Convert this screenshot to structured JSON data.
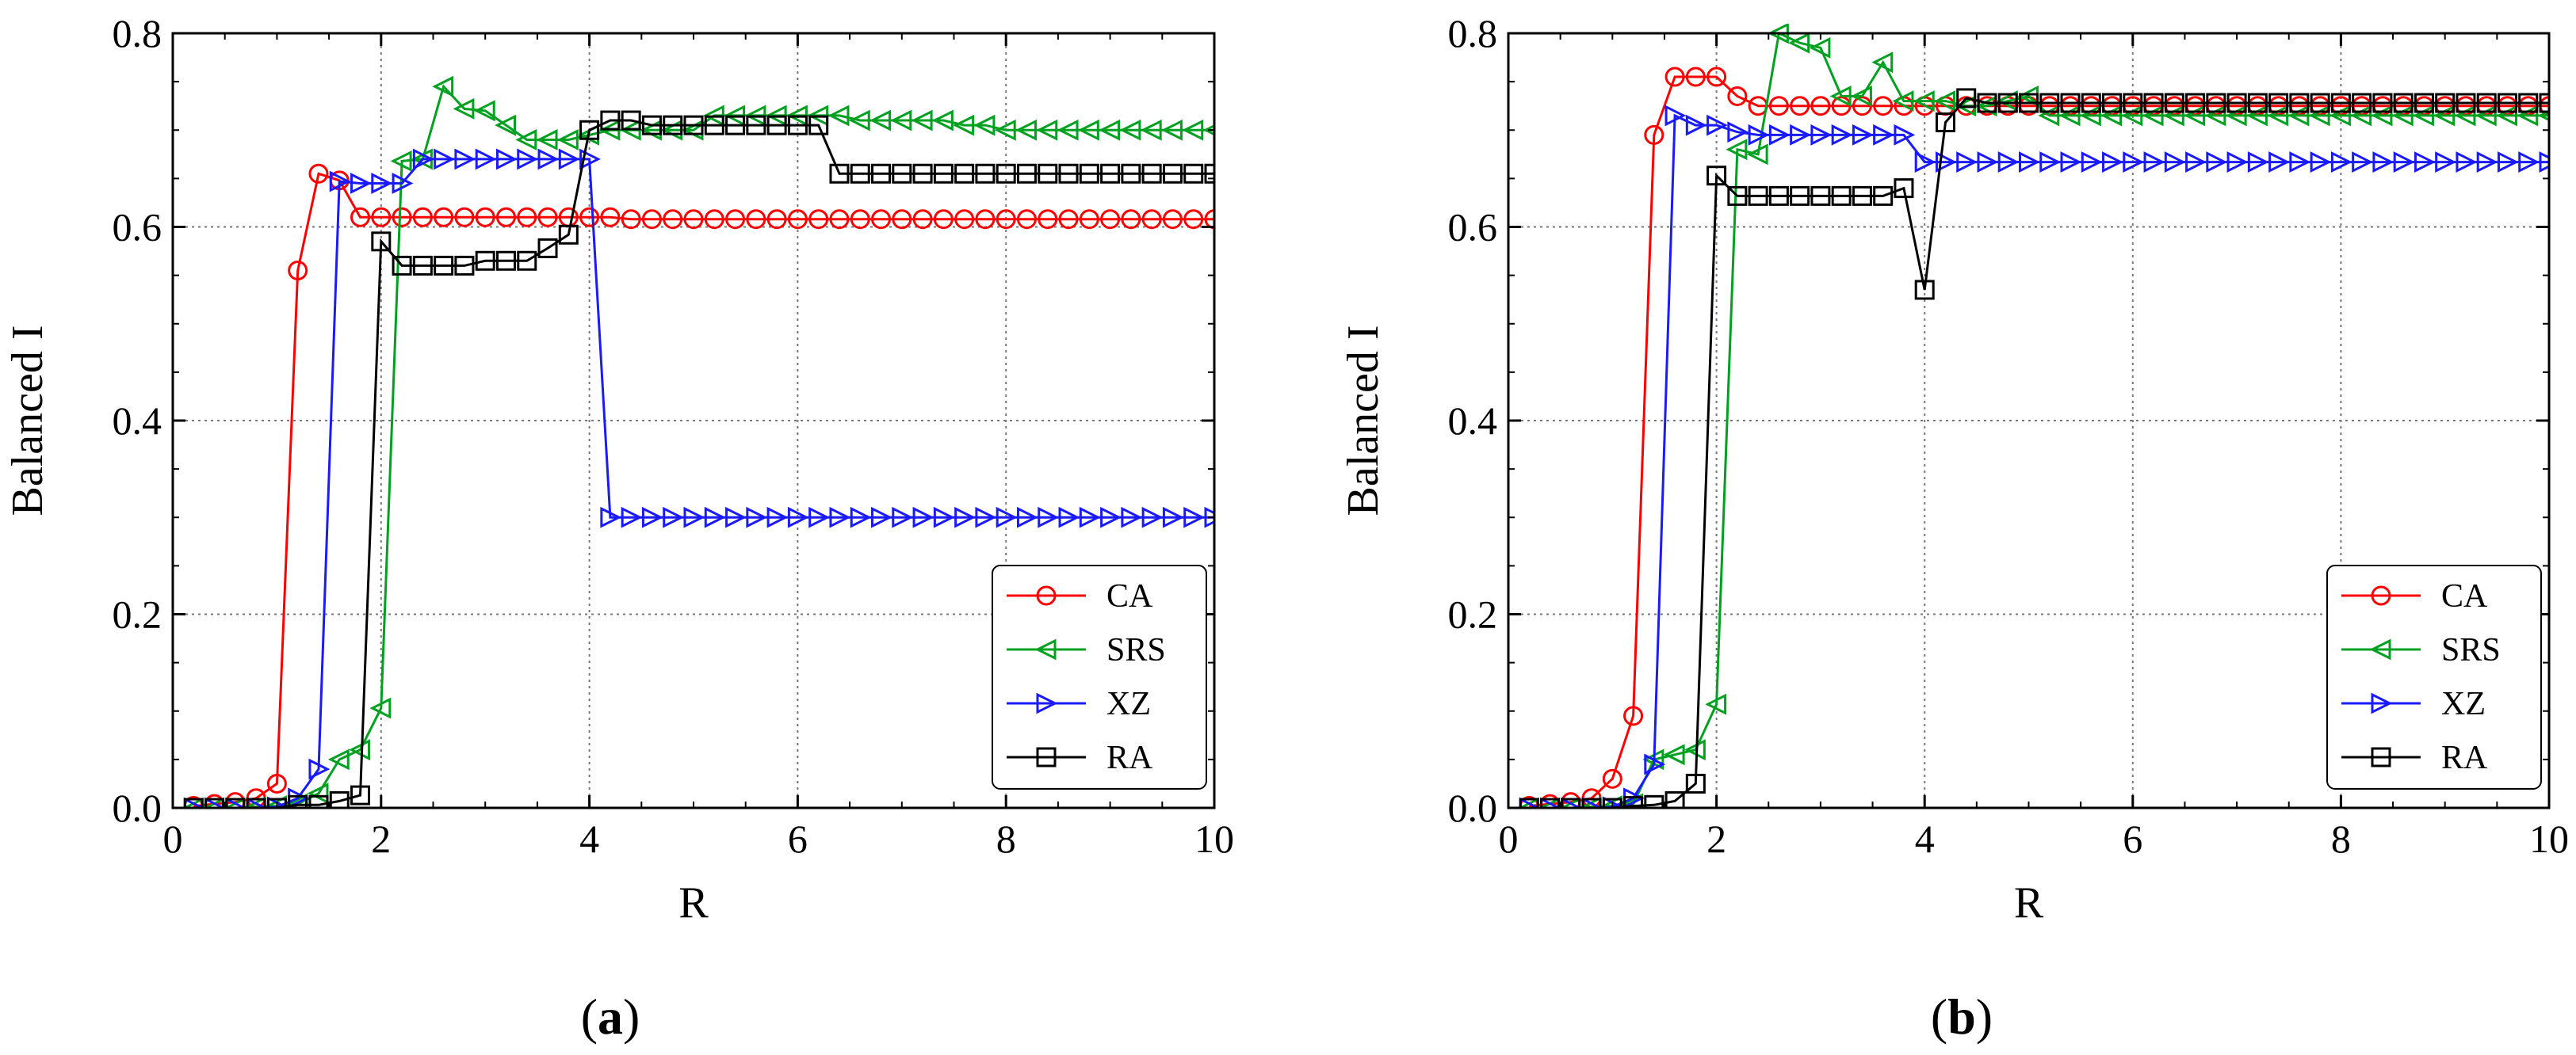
{
  "chart_data": [
    {
      "type": "line",
      "panel_label": "(a)",
      "panel_letter": "a",
      "xlabel": "R",
      "ylabel": "Balanced I",
      "xlim": [
        0,
        10
      ],
      "ylim": [
        0,
        0.8
      ],
      "xticks": [
        "0",
        "2",
        "4",
        "6",
        "8",
        "10"
      ],
      "yticks": [
        "0.0",
        "0.2",
        "0.4",
        "0.6",
        "0.8"
      ],
      "grid": true,
      "legend_position": "bottom-right",
      "x": [
        0.2,
        0.4,
        0.6,
        0.8,
        1.0,
        1.2,
        1.4,
        1.6,
        1.8,
        2.0,
        2.2,
        2.4,
        2.6,
        2.8,
        3.0,
        3.2,
        3.4,
        3.6,
        3.8,
        4.0,
        4.2,
        4.4,
        4.6,
        4.8,
        5.0,
        5.2,
        5.4,
        5.6,
        5.8,
        6.0,
        6.2,
        6.4,
        6.6,
        6.8,
        7.0,
        7.2,
        7.4,
        7.6,
        7.8,
        8.0,
        8.2,
        8.4,
        8.6,
        8.8,
        9.0,
        9.2,
        9.4,
        9.6,
        9.8,
        10.0
      ],
      "series": [
        {
          "name": "CA",
          "color": "#ff0000",
          "marker": "circle",
          "values": [
            0.002,
            0.004,
            0.006,
            0.01,
            0.025,
            0.555,
            0.655,
            0.648,
            0.61,
            0.61,
            0.61,
            0.61,
            0.61,
            0.61,
            0.61,
            0.61,
            0.61,
            0.61,
            0.61,
            0.61,
            0.61,
            0.608,
            0.608,
            0.608,
            0.608,
            0.608,
            0.608,
            0.608,
            0.608,
            0.608,
            0.608,
            0.608,
            0.608,
            0.608,
            0.608,
            0.608,
            0.608,
            0.608,
            0.608,
            0.608,
            0.608,
            0.608,
            0.608,
            0.608,
            0.608,
            0.608,
            0.608,
            0.608,
            0.608,
            0.608
          ]
        },
        {
          "name": "SRS",
          "color": "#00a020",
          "marker": "triangle-left",
          "values": [
            0.0,
            0.0,
            0.0,
            0.001,
            0.002,
            0.004,
            0.015,
            0.05,
            0.06,
            0.103,
            0.668,
            0.67,
            0.745,
            0.722,
            0.72,
            0.705,
            0.69,
            0.69,
            0.69,
            0.695,
            0.7,
            0.7,
            0.7,
            0.7,
            0.7,
            0.715,
            0.715,
            0.715,
            0.715,
            0.715,
            0.715,
            0.715,
            0.71,
            0.71,
            0.71,
            0.71,
            0.71,
            0.705,
            0.705,
            0.7,
            0.7,
            0.7,
            0.7,
            0.7,
            0.7,
            0.7,
            0.7,
            0.7,
            0.7,
            0.7
          ]
        },
        {
          "name": "XZ",
          "color": "#1a1aff",
          "marker": "triangle-right",
          "values": [
            0.0,
            0.0,
            0.0,
            0.0,
            0.001,
            0.01,
            0.04,
            0.647,
            0.645,
            0.645,
            0.645,
            0.67,
            0.67,
            0.67,
            0.67,
            0.67,
            0.67,
            0.67,
            0.67,
            0.67,
            0.3,
            0.3,
            0.3,
            0.3,
            0.3,
            0.3,
            0.3,
            0.3,
            0.3,
            0.3,
            0.3,
            0.3,
            0.3,
            0.3,
            0.3,
            0.3,
            0.3,
            0.3,
            0.3,
            0.3,
            0.3,
            0.3,
            0.3,
            0.3,
            0.3,
            0.3,
            0.3,
            0.3,
            0.3,
            0.3
          ]
        },
        {
          "name": "RA",
          "color": "#000000",
          "marker": "square",
          "values": [
            0.0,
            0.0,
            0.0,
            0.0,
            0.0,
            0.003,
            0.003,
            0.007,
            0.013,
            0.585,
            0.56,
            0.56,
            0.56,
            0.56,
            0.565,
            0.565,
            0.565,
            0.578,
            0.592,
            0.7,
            0.71,
            0.71,
            0.705,
            0.705,
            0.705,
            0.705,
            0.705,
            0.705,
            0.705,
            0.705,
            0.705,
            0.655,
            0.655,
            0.655,
            0.655,
            0.655,
            0.655,
            0.655,
            0.655,
            0.655,
            0.655,
            0.655,
            0.655,
            0.655,
            0.655,
            0.655,
            0.655,
            0.655,
            0.655,
            0.655
          ]
        }
      ]
    },
    {
      "type": "line",
      "panel_label": "(b)",
      "panel_letter": "b",
      "xlabel": "R",
      "ylabel": "Balanced I",
      "xlim": [
        0,
        10
      ],
      "ylim": [
        0,
        0.8
      ],
      "xticks": [
        "0",
        "2",
        "4",
        "6",
        "8",
        "10"
      ],
      "yticks": [
        "0.0",
        "0.2",
        "0.4",
        "0.6",
        "0.8"
      ],
      "grid": true,
      "legend_position": "bottom-right",
      "x": [
        0.2,
        0.4,
        0.6,
        0.8,
        1.0,
        1.2,
        1.4,
        1.6,
        1.8,
        2.0,
        2.2,
        2.4,
        2.6,
        2.8,
        3.0,
        3.2,
        3.4,
        3.6,
        3.8,
        4.0,
        4.2,
        4.4,
        4.6,
        4.8,
        5.0,
        5.2,
        5.4,
        5.6,
        5.8,
        6.0,
        6.2,
        6.4,
        6.6,
        6.8,
        7.0,
        7.2,
        7.4,
        7.6,
        7.8,
        8.0,
        8.2,
        8.4,
        8.6,
        8.8,
        9.0,
        9.2,
        9.4,
        9.6,
        9.8,
        10.0
      ],
      "series": [
        {
          "name": "CA",
          "color": "#ff0000",
          "marker": "circle",
          "values": [
            0.002,
            0.004,
            0.006,
            0.01,
            0.03,
            0.095,
            0.695,
            0.755,
            0.755,
            0.755,
            0.735,
            0.725,
            0.725,
            0.725,
            0.725,
            0.725,
            0.725,
            0.725,
            0.725,
            0.725,
            0.725,
            0.725,
            0.725,
            0.725,
            0.725,
            0.725,
            0.725,
            0.725,
            0.725,
            0.725,
            0.725,
            0.725,
            0.725,
            0.725,
            0.725,
            0.725,
            0.725,
            0.725,
            0.725,
            0.725,
            0.725,
            0.725,
            0.725,
            0.725,
            0.725,
            0.725,
            0.725,
            0.725,
            0.725,
            0.725
          ]
        },
        {
          "name": "SRS",
          "color": "#00a020",
          "marker": "triangle-left",
          "values": [
            0.0,
            0.0,
            0.0,
            0.001,
            0.002,
            0.004,
            0.05,
            0.055,
            0.06,
            0.107,
            0.68,
            0.675,
            0.8,
            0.79,
            0.785,
            0.735,
            0.735,
            0.77,
            0.73,
            0.73,
            0.73,
            0.725,
            0.725,
            0.73,
            0.735,
            0.715,
            0.715,
            0.715,
            0.715,
            0.715,
            0.715,
            0.715,
            0.715,
            0.715,
            0.715,
            0.715,
            0.715,
            0.715,
            0.715,
            0.715,
            0.715,
            0.715,
            0.715,
            0.715,
            0.715,
            0.715,
            0.715,
            0.715,
            0.715,
            0.715
          ]
        },
        {
          "name": "XZ",
          "color": "#1a1aff",
          "marker": "triangle-right",
          "values": [
            0.0,
            0.0,
            0.0,
            0.0,
            0.001,
            0.01,
            0.045,
            0.715,
            0.705,
            0.705,
            0.698,
            0.695,
            0.695,
            0.695,
            0.695,
            0.695,
            0.695,
            0.695,
            0.695,
            0.667,
            0.667,
            0.667,
            0.667,
            0.667,
            0.667,
            0.667,
            0.667,
            0.667,
            0.667,
            0.667,
            0.667,
            0.667,
            0.667,
            0.667,
            0.667,
            0.667,
            0.667,
            0.667,
            0.667,
            0.667,
            0.667,
            0.667,
            0.667,
            0.667,
            0.667,
            0.667,
            0.667,
            0.667,
            0.667,
            0.667
          ]
        },
        {
          "name": "RA",
          "color": "#000000",
          "marker": "square",
          "values": [
            0.0,
            0.0,
            0.0,
            0.0,
            0.0,
            0.002,
            0.003,
            0.007,
            0.025,
            0.653,
            0.632,
            0.632,
            0.632,
            0.632,
            0.632,
            0.632,
            0.632,
            0.632,
            0.64,
            0.535,
            0.708,
            0.733,
            0.728,
            0.728,
            0.728,
            0.728,
            0.728,
            0.728,
            0.728,
            0.728,
            0.728,
            0.728,
            0.728,
            0.728,
            0.728,
            0.728,
            0.728,
            0.728,
            0.728,
            0.728,
            0.728,
            0.728,
            0.728,
            0.728,
            0.728,
            0.728,
            0.728,
            0.728,
            0.728,
            0.728
          ]
        }
      ]
    }
  ]
}
